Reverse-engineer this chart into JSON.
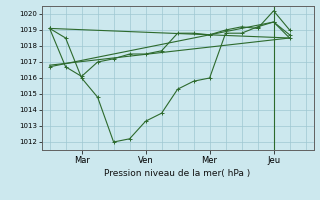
{
  "bg_color": "#cce8ee",
  "grid_color": "#9fc8d2",
  "line_color": "#2d6a2d",
  "xlabel": "Pression niveau de la mer( hPa )",
  "ylim": [
    1011.5,
    1020.5
  ],
  "yticks": [
    1012,
    1013,
    1014,
    1015,
    1016,
    1017,
    1018,
    1019,
    1020
  ],
  "xtick_labels": [
    "Mar",
    "Ven",
    "Mer",
    "Jeu"
  ],
  "xtick_positions": [
    2,
    6,
    10,
    14
  ],
  "xlim": [
    -0.5,
    16.5
  ],
  "series1_x": [
    0,
    1,
    2,
    3,
    4,
    5,
    6,
    7,
    8,
    9,
    10,
    11,
    12,
    13,
    14,
    15
  ],
  "series1_y": [
    1019.1,
    1018.5,
    1016.0,
    1014.8,
    1012.0,
    1012.2,
    1013.3,
    1013.8,
    1015.3,
    1015.8,
    1016.0,
    1018.8,
    1018.8,
    1019.2,
    1019.5,
    1018.5
  ],
  "series2_x": [
    0,
    1,
    2,
    3,
    4,
    5,
    6,
    7,
    8,
    9,
    10,
    11,
    12,
    13,
    14,
    15
  ],
  "series2_y": [
    1019.1,
    1016.7,
    1016.1,
    1017.0,
    1017.2,
    1017.5,
    1017.5,
    1017.7,
    1018.8,
    1018.8,
    1018.7,
    1019.0,
    1019.2,
    1019.1,
    1020.2,
    1019.0
  ],
  "series3_x": [
    0,
    15
  ],
  "series3_y": [
    1016.8,
    1018.5
  ],
  "series4_x": [
    0,
    15
  ],
  "series4_y": [
    1019.1,
    1018.5
  ],
  "series5_x": [
    0,
    10,
    14,
    15
  ],
  "series5_y": [
    1016.7,
    1018.7,
    1019.5,
    1018.7
  ],
  "vline_x": 14
}
